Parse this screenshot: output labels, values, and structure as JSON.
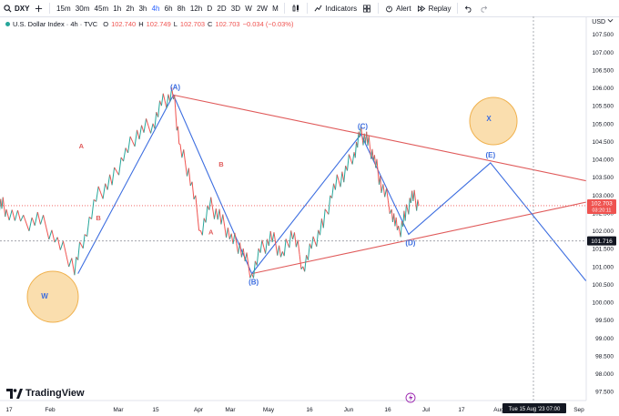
{
  "toolbar": {
    "symbol": "DXY",
    "intervals": [
      "15m",
      "30m",
      "45m",
      "1h",
      "2h",
      "3h",
      "4h",
      "6h",
      "8h",
      "12h",
      "D",
      "2D",
      "3D",
      "W",
      "2W",
      "M"
    ],
    "active_interval": "4h",
    "indicators_label": "Indicators",
    "alert_label": "Alert",
    "replay_label": "Replay"
  },
  "legend": {
    "title": "U.S. Dollar Index · 4h · TVC",
    "o_label": "O",
    "o_value": "102.740",
    "h_label": "H",
    "h_value": "102.749",
    "l_label": "L",
    "l_value": "102.703",
    "c_label": "C",
    "c_value": "102.703",
    "change": "−0.034 (−0.03%)"
  },
  "currency": "USD",
  "brand": "TradingView",
  "chart_data": {
    "type": "line",
    "title": "U.S. Dollar Index · 4h · TVC",
    "ylim": [
      97.25,
      108.0
    ],
    "y_ticks": [
      97.5,
      98.0,
      98.5,
      99.0,
      99.5,
      100.0,
      100.5,
      101.0,
      101.5,
      102.0,
      102.5,
      103.0,
      103.5,
      104.0,
      104.5,
      105.0,
      105.5,
      106.0,
      106.5,
      107.0,
      107.5
    ],
    "x_tick_labels": [
      "17",
      "Feb",
      "Mar",
      "15",
      "Apr",
      "Mar",
      "May",
      "16",
      "Jun",
      "16",
      "Jul",
      "17",
      "Aug",
      "Sep"
    ],
    "price_label": {
      "value": "102.703",
      "countdown": "03:20:11"
    },
    "crosshair_label": {
      "value": "101.716"
    },
    "date_label": "Tue 15 Aug '23  07:00",
    "series": [
      {
        "name": "price",
        "points": [
          [
            -2,
            102.8
          ],
          [
            0,
            102.6
          ],
          [
            5,
            102.2
          ],
          [
            10,
            102.3
          ],
          [
            15,
            101.7
          ],
          [
            20,
            101.0
          ],
          [
            23,
            101.9
          ],
          [
            27,
            103.0
          ],
          [
            31,
            103.4
          ],
          [
            35,
            104.2
          ],
          [
            39,
            104.8
          ],
          [
            43,
            105.0
          ],
          [
            46,
            105.6
          ],
          [
            49,
            105.8
          ],
          [
            51,
            104.3
          ],
          [
            54,
            103.5
          ],
          [
            57,
            102.0
          ],
          [
            60,
            102.7
          ],
          [
            63,
            102.3
          ],
          [
            66,
            101.8
          ],
          [
            69,
            101.5
          ],
          [
            72,
            100.8
          ],
          [
            75,
            101.5
          ],
          [
            78,
            101.8
          ],
          [
            81,
            101.3
          ],
          [
            84,
            102.0
          ],
          [
            87,
            101.0
          ],
          [
            90,
            101.6
          ],
          [
            93,
            102.2
          ],
          [
            96,
            103.2
          ],
          [
            99,
            103.6
          ],
          [
            102,
            104.2
          ],
          [
            104,
            104.7
          ],
          [
            106,
            104.5
          ],
          [
            108,
            104.0
          ],
          [
            110,
            103.3
          ],
          [
            113,
            102.6
          ],
          [
            115,
            101.9
          ],
          [
            117,
            102.4
          ],
          [
            119,
            103.0
          ],
          [
            121,
            102.7
          ]
        ]
      }
    ],
    "waves": [
      {
        "label": "W",
        "start": [
          21,
          100.8
        ]
      },
      {
        "label": "(A)",
        "point": [
          49,
          105.8
        ]
      },
      {
        "label": "(B)",
        "point": [
          72,
          100.8
        ]
      },
      {
        "label": "(C)",
        "point": [
          104,
          104.7
        ]
      },
      {
        "label": "(D)",
        "point": [
          118,
          101.9
        ]
      },
      {
        "label": "(E)",
        "point": [
          142,
          103.9
        ]
      },
      {
        "label": "X",
        "point": [
          142,
          103.9
        ]
      }
    ],
    "wave_path": [
      [
        21,
        100.8
      ],
      [
        49,
        105.8
      ],
      [
        72,
        100.8
      ],
      [
        104,
        104.7
      ],
      [
        118,
        101.9
      ],
      [
        142,
        103.9
      ],
      [
        170,
        100.6
      ]
    ],
    "small_labels": [
      {
        "label": "A",
        "point": [
          22,
          104.3
        ]
      },
      {
        "label": "B",
        "point": [
          27,
          102.3
        ]
      },
      {
        "label": "B",
        "point": [
          63,
          103.8
        ]
      },
      {
        "label": "A",
        "point": [
          60,
          101.9
        ]
      }
    ],
    "triangle_upper": [
      [
        49,
        105.8
      ],
      [
        170,
        103.4
      ]
    ],
    "triangle_lower": [
      [
        72,
        100.8
      ],
      [
        170,
        102.8
      ]
    ]
  }
}
